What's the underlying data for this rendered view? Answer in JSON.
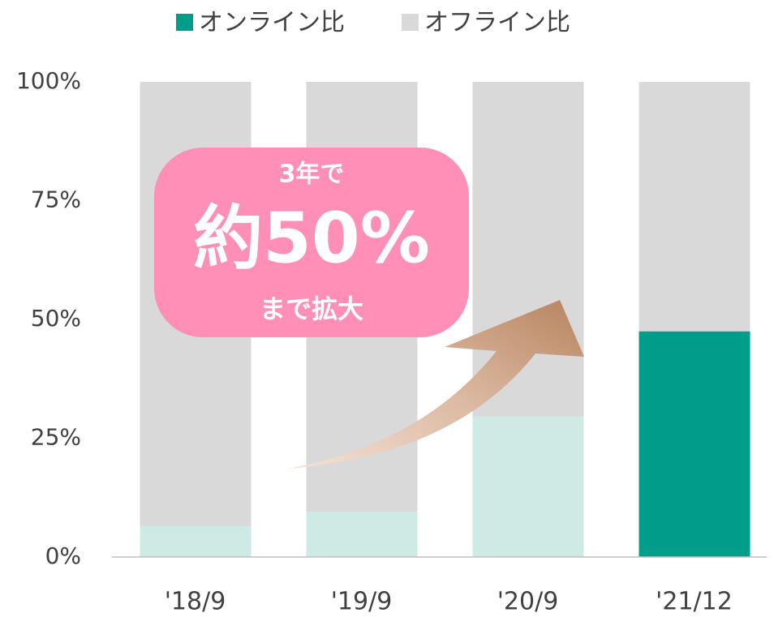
{
  "chart_data": {
    "type": "stacked_bar",
    "categories": [
      "'18/9",
      "'19/9",
      "'20/9",
      "'21/12"
    ],
    "series": [
      {
        "name": "オンライン比",
        "color": "#009e8a",
        "colors": [
          "#cdeae5",
          "#cdeae5",
          "#cdeae5",
          "#009e8a"
        ],
        "values": [
          6.5,
          9.5,
          29.5,
          47.5
        ]
      },
      {
        "name": "オフライン比",
        "color": "#d9d9d9",
        "values": [
          93.5,
          90.5,
          70.5,
          52.5
        ]
      }
    ],
    "ylim": [
      0,
      100
    ],
    "yticks": [
      {
        "value": 0,
        "label": "0%"
      },
      {
        "value": 25,
        "label": "25%"
      },
      {
        "value": 50,
        "label": "50%"
      },
      {
        "value": 75,
        "label": "75%"
      },
      {
        "value": 100,
        "label": "100%"
      }
    ],
    "grid": false,
    "legend": "top",
    "annotations": [
      "3年で",
      "約50%",
      "まで拡大"
    ]
  }
}
